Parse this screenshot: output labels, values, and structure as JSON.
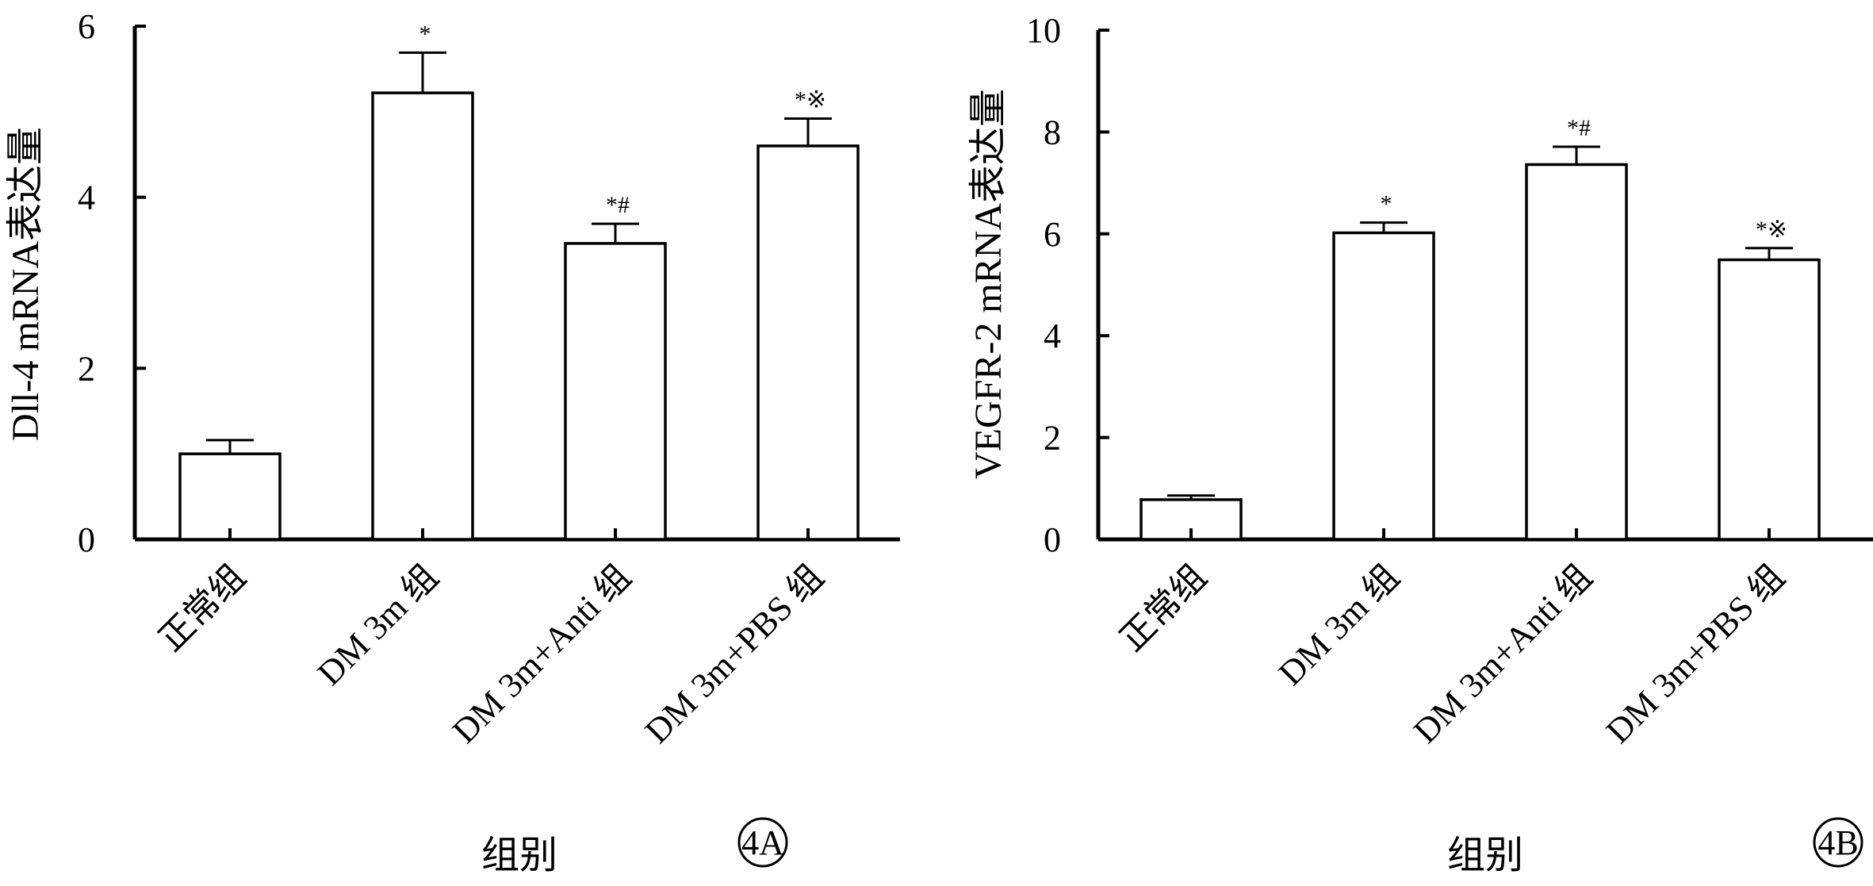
{
  "chart_data": [
    {
      "type": "bar",
      "panel": "4A",
      "categories": [
        "正常组",
        "DM 3m 组",
        "DM 3m+Anti 组",
        "DM 3m+PBS 组"
      ],
      "values": [
        1.0,
        5.22,
        3.46,
        4.6
      ],
      "error": [
        0.16,
        0.47,
        0.23,
        0.32
      ],
      "annotations": [
        "",
        "*",
        "*#",
        "*※"
      ],
      "xlabel": "组别",
      "ylabel": "Dll-4 mRNA表达量",
      "ylim": [
        0,
        6
      ],
      "yticks": [
        0,
        2,
        4,
        6
      ],
      "grid": false,
      "bar_color": "#ffffff",
      "line_color": "#000000"
    },
    {
      "type": "bar",
      "panel": "4B",
      "categories": [
        "正常组",
        "DM 3m 组",
        "DM 3m+Anti 组",
        "DM 3m+PBS 组"
      ],
      "values": [
        0.78,
        6.02,
        7.36,
        5.49
      ],
      "error": [
        0.08,
        0.2,
        0.35,
        0.23
      ],
      "annotations": [
        "",
        "*",
        "*#",
        "*※"
      ],
      "xlabel": "组别",
      "ylabel": "VEGFR-2 mRNA表达量",
      "ylim": [
        0,
        10
      ],
      "yticks": [
        0,
        2,
        4,
        6,
        8,
        10
      ],
      "grid": false,
      "bar_color": "#ffffff",
      "line_color": "#000000"
    }
  ]
}
